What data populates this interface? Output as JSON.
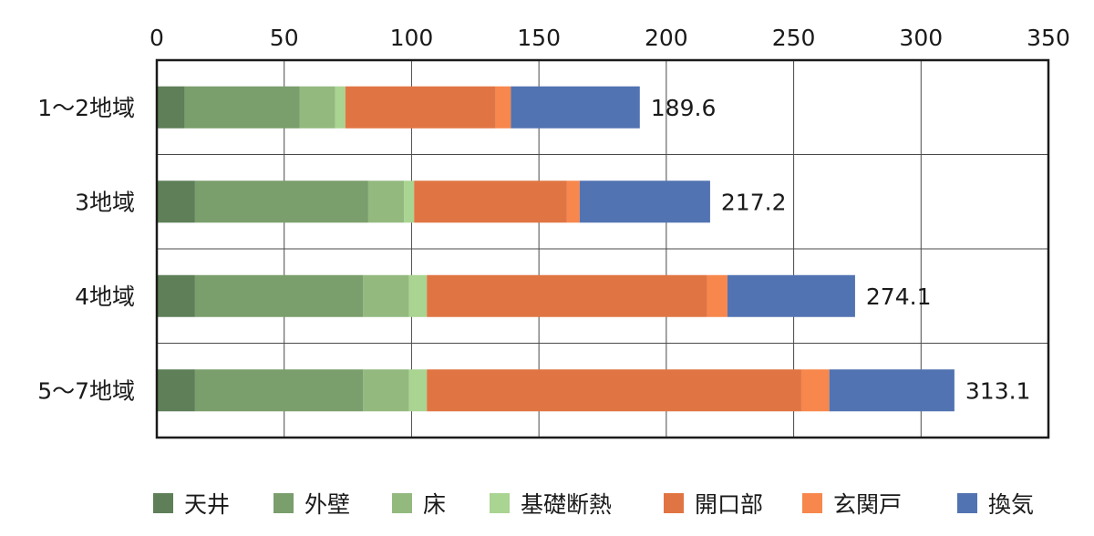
{
  "chart_data": {
    "type": "bar",
    "orientation": "horizontal",
    "stacked": true,
    "categories": [
      "1～2地域",
      "3地域",
      "4地域",
      "5～7地域"
    ],
    "series": [
      {
        "name": "天井",
        "color": "#5e7f58",
        "values": [
          11,
          15,
          15,
          15
        ]
      },
      {
        "name": "外壁",
        "color": "#7a9e6c",
        "values": [
          45,
          68,
          66,
          66
        ]
      },
      {
        "name": "床",
        "color": "#93b97f",
        "values": [
          14,
          14,
          18,
          18
        ]
      },
      {
        "name": "基礎断熱",
        "color": "#a9d491",
        "values": [
          4,
          4,
          7,
          7
        ]
      },
      {
        "name": "開口部",
        "color": "#e07543",
        "values": [
          59,
          60,
          110,
          147
        ]
      },
      {
        "name": "玄関戸",
        "color": "#f7874c",
        "values": [
          6,
          5,
          8,
          11
        ]
      },
      {
        "name": "換気",
        "color": "#5273b2",
        "values": [
          50.6,
          51.2,
          50.1,
          49.1
        ]
      }
    ],
    "totals": [
      "189.6",
      "217.2",
      "274.1",
      "313.1"
    ],
    "xlim": [
      0,
      350
    ],
    "xticks": [
      "0",
      "50",
      "100",
      "150",
      "200",
      "250",
      "300",
      "350"
    ],
    "xaxis_position": "top",
    "grid": true,
    "legend_position": "bottom",
    "title": "",
    "xlabel": "",
    "ylabel": ""
  }
}
